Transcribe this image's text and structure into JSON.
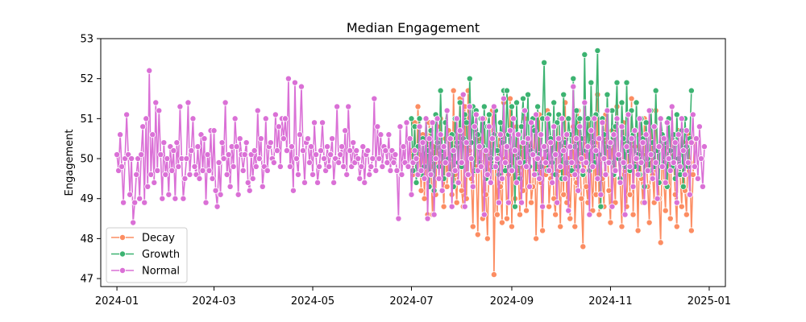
{
  "chart_data": {
    "type": "line",
    "title": "Median Engagement",
    "xlabel": "",
    "ylabel": "Engagement",
    "x_ticks": [
      "2024-01",
      "2024-03",
      "2024-05",
      "2024-07",
      "2024-09",
      "2024-11",
      "2025-01"
    ],
    "y_ticks": [
      "47",
      "48",
      "49",
      "50",
      "51",
      "52",
      "53"
    ],
    "xlim": [
      "2023-12-22",
      "2025-01-11"
    ],
    "ylim": [
      46.8,
      53.0
    ],
    "grid": false,
    "legend_position": "lower-left",
    "series": [
      {
        "name": "Decay",
        "color": "#fc8d62",
        "x_start": "2024-07-01",
        "values": [
          50.2,
          49.6,
          50.9,
          49.4,
          51.3,
          50.1,
          49.2,
          50.6,
          49.0,
          50.4,
          48.6,
          50.9,
          49.8,
          48.6,
          50.3,
          49.1,
          50.8,
          49.5,
          51.0,
          49.9,
          48.8,
          50.5,
          49.3,
          50.7,
          50.0,
          49.1,
          51.7,
          49.6,
          48.9,
          50.3,
          51.5,
          49.2,
          48.8,
          51.3,
          49.0,
          51.7,
          50.2,
          49.5,
          48.3,
          50.8,
          49.8,
          48.1,
          50.5,
          49.9,
          48.5,
          51.0,
          49.1,
          48.0,
          50.2,
          49.4,
          51.2,
          47.1,
          49.8,
          48.6,
          50.6,
          49.3,
          48.4,
          51.4,
          50.0,
          48.5,
          49.6,
          51.5,
          48.3,
          50.1,
          49.0,
          50.8,
          49.7,
          48.6,
          50.3,
          49.2,
          51.0,
          48.7,
          49.9,
          50.5,
          48.9,
          49.3,
          50.7,
          48.0,
          49.8,
          51.1,
          49.4,
          48.2,
          50.0,
          49.6,
          51.2,
          48.8,
          49.5,
          50.4,
          49.0,
          48.6,
          50.9,
          49.7,
          48.3,
          50.2,
          49.1,
          51.4,
          48.9,
          50.0,
          48.5,
          49.6,
          50.8,
          48.3,
          49.4,
          51.2,
          50.1,
          49.0,
          47.8,
          50.5,
          49.3,
          48.9,
          51.0,
          49.8,
          48.7,
          50.3,
          49.1,
          51.6,
          48.6,
          50.0,
          49.5,
          48.8,
          51.1,
          50.4,
          49.2,
          48.4,
          50.7,
          49.6,
          48.9,
          51.3,
          50.0,
          49.4,
          48.3,
          50.9,
          49.7,
          48.8,
          50.2,
          49.1,
          51.5,
          48.6,
          50.3,
          49.9,
          48.2,
          50.6,
          49.5,
          48.9,
          51.0,
          50.1,
          49.3,
          48.4,
          50.8,
          49.6,
          48.9,
          51.2,
          50.2,
          49.0,
          47.9,
          50.5,
          49.4,
          48.7,
          50.9,
          49.8,
          48.5,
          51.3,
          50.0,
          49.1,
          48.3,
          50.7,
          49.6,
          48.8,
          50.4,
          49.2,
          48.6,
          50.6,
          49.9,
          48.2,
          49.6,
          50.5
        ]
      },
      {
        "name": "Growth",
        "color": "#3cb371",
        "x_start": "2024-07-01",
        "values": [
          51.0,
          49.7,
          50.8,
          49.4,
          50.3,
          51.0,
          49.6,
          50.5,
          49.8,
          51.0,
          50.2,
          49.3,
          50.7,
          50.0,
          49.2,
          51.1,
          50.4,
          49.8,
          51.7,
          50.2,
          49.5,
          50.9,
          51.2,
          50.0,
          49.6,
          50.6,
          49.3,
          51.0,
          50.4,
          49.9,
          51.4,
          49.8,
          50.5,
          51.1,
          50.9,
          49.6,
          52.0,
          50.4,
          51.3,
          49.7,
          51.2,
          50.6,
          49.9,
          51.0,
          50.3,
          51.3,
          49.5,
          50.8,
          51.1,
          50.0,
          49.8,
          50.6,
          51.2,
          50.2,
          49.6,
          50.9,
          50.4,
          51.7,
          49.7,
          51.7,
          50.6,
          49.8,
          51.3,
          50.2,
          48.8,
          51.4,
          50.0,
          49.5,
          50.8,
          51.5,
          49.9,
          50.4,
          51.6,
          49.8,
          50.2,
          51.0,
          50.7,
          49.6,
          51.3,
          50.1,
          49.8,
          51.0,
          52.4,
          50.2,
          49.7,
          51.1,
          50.5,
          49.9,
          51.4,
          49.6,
          50.9,
          51.1,
          50.1,
          49.5,
          51.6,
          50.4,
          49.9,
          51.0,
          50.6,
          49.7,
          52.0,
          50.3,
          51.2,
          49.8,
          51.0,
          50.5,
          49.6,
          52.6,
          50.2,
          51.0,
          49.7,
          51.9,
          50.4,
          49.9,
          51.1,
          52.7,
          50.1,
          48.8,
          51.0,
          50.6,
          49.6,
          51.6,
          50.3,
          49.9,
          51.2,
          49.6,
          50.8,
          51.9,
          50.0,
          49.5,
          51.4,
          50.5,
          49.8,
          51.9,
          50.2,
          49.7,
          51.2,
          50.6,
          49.8,
          51.4,
          50.1,
          49.6,
          51.0,
          50.5,
          49.3,
          50.9,
          50.0,
          49.7,
          51.2,
          50.4,
          49.8,
          51.7,
          50.2,
          49.4,
          51.0,
          50.6,
          49.9,
          50.4,
          49.3,
          51.0,
          50.2,
          49.8,
          50.6,
          49.5,
          51.1,
          50.0,
          49.6,
          50.7,
          49.3,
          51.0,
          50.3,
          49.8,
          50.5,
          51.7
        ]
      },
      {
        "name": "Normal",
        "color": "#da70d6",
        "x_start": "2024-01-01",
        "values": [
          50.1,
          49.7,
          50.6,
          49.8,
          48.9,
          50.0,
          51.1,
          50.1,
          49.1,
          50.0,
          48.4,
          48.9,
          49.6,
          50.0,
          49.0,
          50.1,
          50.8,
          48.9,
          51.0,
          49.3,
          52.2,
          49.6,
          50.6,
          49.4,
          51.4,
          49.7,
          51.2,
          50.1,
          49.0,
          50.4,
          49.6,
          50.0,
          49.1,
          50.3,
          49.7,
          50.2,
          49.0,
          50.4,
          49.8,
          51.3,
          50.0,
          49.0,
          49.5,
          50.0,
          51.4,
          49.6,
          50.2,
          51.0,
          49.8,
          49.6,
          50.3,
          49.5,
          50.6,
          49.7,
          50.5,
          48.9,
          50.1,
          49.7,
          50.7,
          49.5,
          50.7,
          49.2,
          48.8,
          49.9,
          49.1,
          50.4,
          50.0,
          51.4,
          49.6,
          50.1,
          49.3,
          50.3,
          49.8,
          51.0,
          50.3,
          49.1,
          50.5,
          50.1,
          49.7,
          50.1,
          50.4,
          49.4,
          49.2,
          50.1,
          49.5,
          50.2,
          49.8,
          51.2,
          50.0,
          50.5,
          49.3,
          49.8,
          51.0,
          49.7,
          50.3,
          50.4,
          50.0,
          49.9,
          51.1,
          50.2,
          50.8,
          49.8,
          51.0,
          50.5,
          51.0,
          50.2,
          52.0,
          49.8,
          50.3,
          49.2,
          51.9,
          50.0,
          49.6,
          50.6,
          51.8,
          50.2,
          49.4,
          50.4,
          50.5,
          49.9,
          50.3,
          49.6,
          50.9,
          50.1,
          49.4,
          49.8,
          50.2,
          50.9,
          50.0,
          49.7,
          50.3,
          49.8,
          50.1,
          50.5,
          49.4,
          50.0,
          51.3,
          49.9,
          50.1,
          50.3,
          49.8,
          50.7,
          49.6,
          51.3,
          50.2,
          49.8,
          50.4,
          49.9,
          50.2,
          50.0,
          49.5,
          49.8,
          50.3,
          49.4,
          50.1,
          50.2,
          49.6,
          49.8,
          50.0,
          51.5,
          49.7,
          50.8,
          50.0,
          50.6,
          49.8,
          50.3,
          50.2,
          49.9,
          50.6,
          49.7,
          50.2,
          49.9,
          50.1,
          49.7,
          48.5,
          50.8,
          49.6,
          50.3,
          49.9,
          50.9,
          49.8,
          50.5,
          49.1,
          49.9,
          50.2,
          50.0,
          49.6,
          50.8,
          49.7,
          50.4,
          49.5,
          51.0,
          48.5,
          50.5,
          49.6,
          50.9,
          48.6,
          50.0,
          51.0,
          49.5,
          50.6,
          49.2,
          50.3,
          49.9,
          51.2,
          49.6,
          50.5,
          48.8,
          50.2,
          49.7,
          51.0,
          49.4,
          50.7,
          49.9,
          51.6,
          48.8,
          50.4,
          49.6,
          51.3,
          50.0,
          49.3,
          50.8,
          51.1,
          49.7,
          50.3,
          49.8,
          51.0,
          48.6,
          50.2,
          49.6,
          50.8,
          49.4,
          50.5,
          51.3,
          49.8,
          50.0,
          48.9,
          50.6,
          49.5,
          51.5,
          49.9,
          50.3,
          48.9,
          50.7,
          49.7,
          51.0,
          50.2,
          49.4,
          50.6,
          49.9,
          48.9,
          50.4,
          51.2,
          49.8,
          50.5,
          49.3,
          50.9,
          50.1,
          49.6,
          51.1,
          50.0,
          49.5,
          50.6,
          48.8,
          50.3,
          49.9,
          51.0,
          49.7,
          50.4,
          49.4,
          50.8,
          50.1,
          48.9,
          50.5,
          49.8,
          51.0,
          50.2,
          49.5,
          50.6,
          48.7,
          50.3,
          49.9,
          51.8,
          49.6,
          50.5,
          49.2,
          50.8,
          50.0,
          49.7,
          51.4,
          49.9,
          50.3,
          48.6,
          50.7,
          49.8,
          51.0,
          50.2,
          49.5,
          50.5,
          49.1,
          50.9,
          50.0,
          49.6,
          51.2,
          49.9,
          50.4,
          48.8,
          50.6,
          49.7,
          51.0,
          50.1,
          49.4,
          50.8,
          49.9,
          48.6,
          50.3,
          51.1,
          49.8,
          50.5,
          49.3,
          50.7,
          50.0,
          49.6,
          51.0,
          49.9,
          50.4,
          48.9,
          50.6,
          49.7,
          51.2,
          50.1,
          49.5,
          50.8,
          49.9,
          49.0,
          50.3,
          51.0,
          49.8,
          50.5,
          49.4,
          50.9,
          50.0,
          49.7,
          51.3,
          49.9,
          50.4,
          48.9,
          50.6,
          49.8,
          51.0,
          50.2,
          49.6,
          50.7,
          49.9,
          49.1,
          50.4,
          51.1,
          49.8,
          50.5,
          49.5,
          50.8,
          50.0,
          49.3,
          50.3
        ]
      }
    ]
  }
}
